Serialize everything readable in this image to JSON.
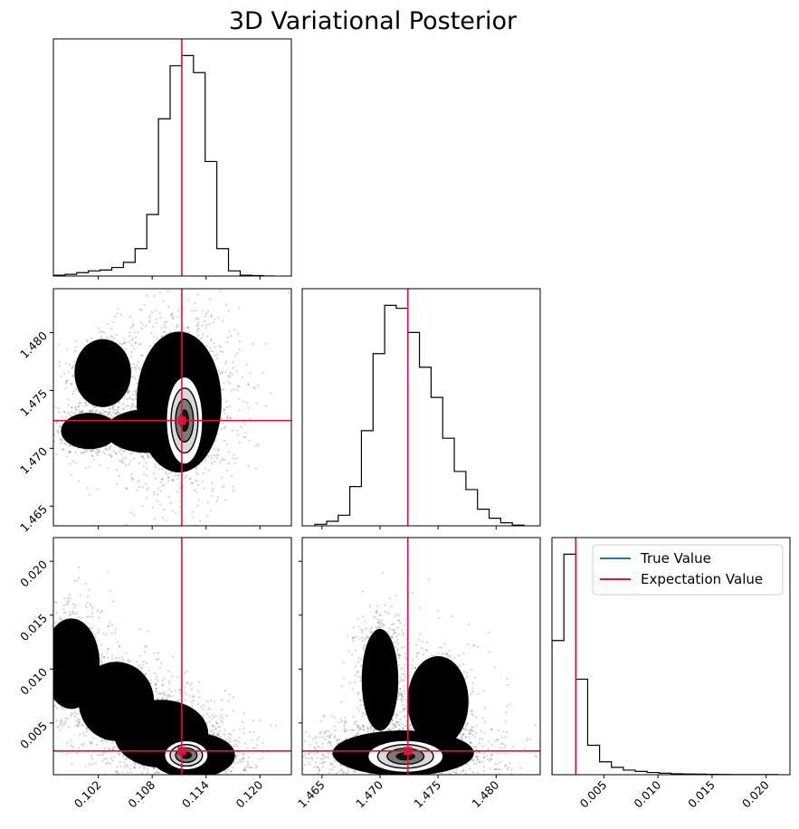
{
  "title": "3D Variational Posterior",
  "colors": {
    "true_value": "#1f77b4",
    "expectation_value": "#dc143c",
    "samples": "#000000",
    "background": "#ffffff"
  },
  "legend": {
    "placement": "upper-right of bottom-right panel",
    "entries": [
      {
        "label": "True Value",
        "color": "#1f77b4"
      },
      {
        "label": "Expectation Value",
        "color": "#dc143c"
      }
    ]
  },
  "chart_data": {
    "type": "corner",
    "parameters": [
      {
        "index": 0,
        "range": [
          0.097,
          0.1235
        ],
        "ticks": [
          "0.102",
          "0.108",
          "0.114",
          "0.120"
        ],
        "tick_values": [
          0.102,
          0.108,
          0.114,
          0.12
        ]
      },
      {
        "index": 1,
        "range": [
          1.4633,
          1.4838
        ],
        "ticks": [
          "1.465",
          "1.470",
          "1.475",
          "1.480"
        ],
        "tick_values": [
          1.465,
          1.47,
          1.475,
          1.48
        ]
      },
      {
        "index": 2,
        "range": [
          0.0002,
          0.0222
        ],
        "ticks": [
          "0.005",
          "0.010",
          "0.015",
          "0.020"
        ],
        "tick_values": [
          0.005,
          0.01,
          0.015,
          0.02
        ]
      }
    ],
    "expectation_value": [
      0.1113,
      1.4724,
      0.0024
    ],
    "histograms": [
      {
        "param": 0,
        "edges": [
          0.097,
          0.0983,
          0.0996,
          0.1009,
          0.1022,
          0.1035,
          0.1048,
          0.1061,
          0.1074,
          0.1087,
          0.11,
          0.1113,
          0.1126,
          0.1139,
          0.1152,
          0.1165,
          0.1178,
          0.1191,
          0.1204,
          0.1217
        ],
        "counts": [
          0.5,
          1,
          2,
          3,
          3.5,
          5,
          8,
          16,
          36,
          92,
          123,
          129,
          119,
          67,
          16,
          3,
          0.5,
          0.3,
          0
        ]
      },
      {
        "param": 1,
        "edges": [
          1.4644,
          1.4654,
          1.4664,
          1.4674,
          1.4684,
          1.4694,
          1.4704,
          1.4714,
          1.4724,
          1.4734,
          1.4744,
          1.4754,
          1.4764,
          1.4774,
          1.4784,
          1.4794,
          1.4804,
          1.4814,
          1.4824
        ],
        "counts": [
          1,
          3,
          7,
          26,
          63,
          114,
          146,
          144,
          128,
          105,
          85,
          58,
          36,
          24,
          11,
          5,
          2,
          0.5
        ]
      },
      {
        "param": 2,
        "edges": [
          0.0002,
          0.0013,
          0.0024,
          0.0035,
          0.0046,
          0.0057,
          0.0068,
          0.0079,
          0.009,
          0.0101,
          0.0112,
          0.0123,
          0.0134,
          0.0145,
          0.0156,
          0.0167,
          0.0178,
          0.0189,
          0.02,
          0.0211
        ],
        "counts": [
          73,
          120,
          52,
          16,
          7,
          4,
          2.5,
          1.8,
          1.2,
          0.8,
          0.5,
          0.4,
          0.3,
          0.2,
          0.15,
          0.1,
          0.1,
          0.05,
          0.05
        ]
      }
    ],
    "joint": [
      {
        "x_param": 0,
        "y_param": 1,
        "clouds": [
          {
            "cx": 0.1025,
            "cy": 1.4765,
            "rx": 0.003,
            "ry": 0.0028,
            "weight": 0.12
          },
          {
            "cx": 0.101,
            "cy": 1.4715,
            "rx": 0.003,
            "ry": 0.0015,
            "weight": 0.18
          },
          {
            "cx": 0.1075,
            "cy": 1.4715,
            "rx": 0.0045,
            "ry": 0.0018,
            "weight": 0.2
          },
          {
            "cx": 0.111,
            "cy": 1.474,
            "rx": 0.0045,
            "ry": 0.0058,
            "weight": 0.5
          }
        ],
        "core": {
          "cx": 0.1116,
          "cy": 1.4724,
          "rx": 0.0015,
          "ry": 0.0028
        }
      },
      {
        "x_param": 0,
        "y_param": 2,
        "clouds": [
          {
            "cx": 0.099,
            "cy": 0.0105,
            "rx": 0.003,
            "ry": 0.004,
            "weight": 0.18
          },
          {
            "cx": 0.104,
            "cy": 0.007,
            "rx": 0.004,
            "ry": 0.0035,
            "weight": 0.25
          },
          {
            "cx": 0.109,
            "cy": 0.004,
            "rx": 0.005,
            "ry": 0.003,
            "weight": 0.3
          },
          {
            "cx": 0.1125,
            "cy": 0.002,
            "rx": 0.0045,
            "ry": 0.002,
            "weight": 0.27
          }
        ],
        "core": {
          "cx": 0.1118,
          "cy": 0.002,
          "rx": 0.0018,
          "ry": 0.001
        }
      },
      {
        "x_param": 1,
        "y_param": 2,
        "clouds": [
          {
            "cx": 1.47,
            "cy": 0.009,
            "rx": 0.0015,
            "ry": 0.0045,
            "weight": 0.25
          },
          {
            "cx": 1.475,
            "cy": 0.007,
            "rx": 0.0025,
            "ry": 0.004,
            "weight": 0.2
          },
          {
            "cx": 1.472,
            "cy": 0.0022,
            "rx": 0.0058,
            "ry": 0.002,
            "weight": 0.55
          }
        ],
        "core": {
          "cx": 1.4722,
          "cy": 0.0019,
          "rx": 0.0024,
          "ry": 0.0011
        }
      }
    ]
  }
}
